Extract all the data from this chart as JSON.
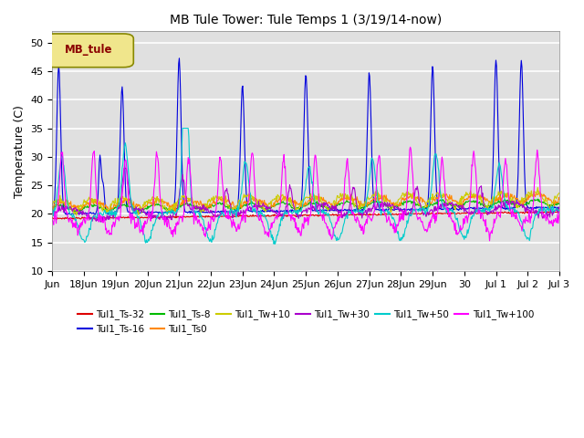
{
  "title": "MB Tule Tower: Tule Temps 1 (3/19/14-now)",
  "ylabel": "Temperature (C)",
  "ylim": [
    10,
    52
  ],
  "yticks": [
    10,
    15,
    20,
    25,
    30,
    35,
    40,
    45,
    50
  ],
  "xlim": [
    0,
    16
  ],
  "x_tick_positions": [
    0,
    1,
    2,
    3,
    4,
    5,
    6,
    7,
    8,
    9,
    10,
    11,
    12,
    13,
    14,
    15,
    16
  ],
  "x_tick_labels": [
    "Jun",
    "18Jun",
    "19Jun",
    "20Jun",
    "21Jun",
    "22Jun",
    "23Jun",
    "24Jun",
    "25Jun",
    "26Jun",
    "27Jun",
    "28Jun",
    "29Jun",
    "30",
    "Jul 1",
    "Jul 2",
    "Jul 3"
  ],
  "bg_color": "#e0e0e0",
  "legend_box_facecolor": "#f0e68c",
  "legend_box_edgecolor": "#888800",
  "legend_text_color": "#8b0000",
  "series": [
    {
      "label": "Tul1_Ts-32",
      "color": "#dd0000"
    },
    {
      "label": "Tul1_Ts-16",
      "color": "#0000dd"
    },
    {
      "label": "Tul1_Ts-8",
      "color": "#00bb00"
    },
    {
      "label": "Tul1_Ts0",
      "color": "#ff8800"
    },
    {
      "label": "Tul1_Tw+10",
      "color": "#cccc00"
    },
    {
      "label": "Tul1_Tw+30",
      "color": "#aa00cc"
    },
    {
      "label": "Tul1_Tw+50",
      "color": "#00cccc"
    },
    {
      "label": "Tul1_Tw+100",
      "color": "#ff00ff"
    }
  ]
}
